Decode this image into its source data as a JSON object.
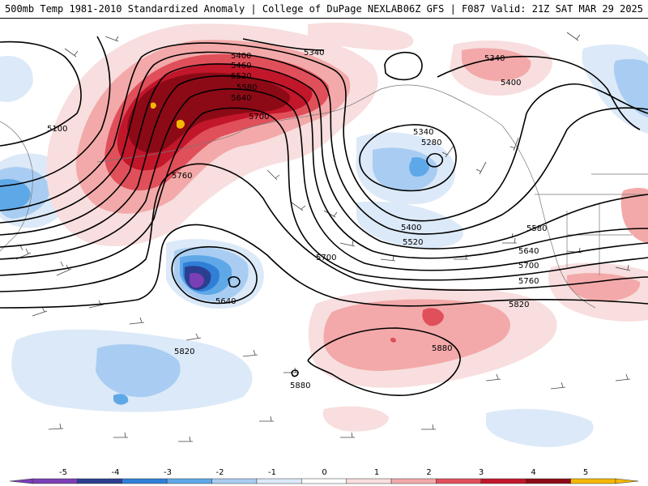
{
  "header": {
    "left_title": "500mb Temp 1981-2010 Standardized Anomaly | College of DuPage NEXLAB",
    "right_title": "06Z GFS | F087 Valid: 21Z SAT MAR 29 2025"
  },
  "contour_labels": {
    "c5100": "5100",
    "c5340a": "5340",
    "c5340b": "5340",
    "c5340c": "5340",
    "c5400a": "5400",
    "c5400b": "5400",
    "c5400c": "5400",
    "c5460": "5460",
    "c5520a": "5520",
    "c5520b": "5520",
    "c5580a": "5580",
    "c5580b": "5580",
    "c5640a": "5640",
    "c5640b": "5640",
    "c5640c": "5640",
    "c5700a": "5700",
    "c5700b": "5700",
    "c5700c": "5700",
    "c5760a": "5760",
    "c5760b": "5760",
    "c5280": "5280",
    "c5820a": "5820",
    "c5820b": "5820",
    "c5880a": "5880",
    "c5880b": "5880"
  },
  "legend": {
    "ticks": [
      "-5",
      "-4",
      "-3",
      "-2",
      "-1",
      "0",
      "1",
      "2",
      "3",
      "4",
      "5"
    ],
    "colors": [
      "#7b3fb5",
      "#2a3f8f",
      "#2f7fd6",
      "#5fa8e8",
      "#a9cdf2",
      "#dce9f8",
      "#ffffff",
      "#f8dede",
      "#f3a9a9",
      "#e0505a",
      "#c2162a",
      "#8c0a16",
      "#f5b800"
    ]
  },
  "colors": {
    "neg1": "#dce9f8",
    "neg2": "#a9cdf2",
    "neg3": "#5fa8e8",
    "neg4": "#2f7fd6",
    "neg5": "#2a3f8f",
    "neg6": "#7b3fb5",
    "pos1": "#f8dede",
    "pos2": "#f3a9a9",
    "pos3": "#e0505a",
    "pos4": "#c2162a",
    "pos5": "#8c0a16",
    "pos6": "#f5b800"
  }
}
